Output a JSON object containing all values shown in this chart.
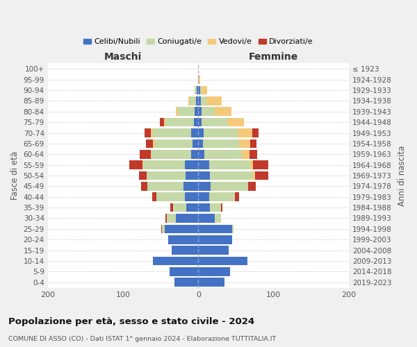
{
  "age_groups": [
    "0-4",
    "5-9",
    "10-14",
    "15-19",
    "20-24",
    "25-29",
    "30-34",
    "35-39",
    "40-44",
    "45-49",
    "50-54",
    "55-59",
    "60-64",
    "65-69",
    "70-74",
    "75-79",
    "80-84",
    "85-89",
    "90-94",
    "95-99",
    "100+"
  ],
  "birth_years": [
    "2019-2023",
    "2014-2018",
    "2009-2013",
    "2004-2008",
    "1999-2003",
    "1994-1998",
    "1989-1993",
    "1984-1988",
    "1979-1983",
    "1974-1978",
    "1969-1973",
    "1964-1968",
    "1959-1963",
    "1954-1958",
    "1949-1953",
    "1944-1948",
    "1939-1943",
    "1934-1938",
    "1929-1933",
    "1924-1928",
    "≤ 1923"
  ],
  "maschi": {
    "celibi": [
      32,
      38,
      60,
      35,
      40,
      45,
      30,
      16,
      18,
      20,
      17,
      18,
      10,
      8,
      10,
      6,
      5,
      3,
      2,
      0,
      0
    ],
    "coniugati": [
      0,
      0,
      0,
      0,
      0,
      3,
      12,
      18,
      38,
      48,
      52,
      55,
      52,
      50,
      50,
      38,
      22,
      8,
      3,
      0,
      0
    ],
    "vedovi": [
      0,
      0,
      0,
      0,
      0,
      0,
      0,
      0,
      0,
      0,
      0,
      1,
      1,
      2,
      3,
      2,
      3,
      2,
      0,
      0,
      0
    ],
    "divorziati": [
      0,
      0,
      0,
      0,
      0,
      1,
      2,
      3,
      5,
      8,
      10,
      18,
      15,
      10,
      8,
      5,
      0,
      0,
      0,
      0,
      0
    ]
  },
  "femmine": {
    "nubili": [
      35,
      42,
      65,
      40,
      45,
      45,
      22,
      15,
      14,
      16,
      15,
      14,
      8,
      6,
      7,
      4,
      4,
      3,
      2,
      0,
      0
    ],
    "coniugate": [
      0,
      0,
      0,
      0,
      0,
      2,
      8,
      15,
      35,
      50,
      58,
      55,
      50,
      48,
      45,
      35,
      18,
      8,
      2,
      0,
      0
    ],
    "vedove": [
      0,
      0,
      0,
      0,
      0,
      0,
      0,
      0,
      0,
      0,
      2,
      4,
      10,
      15,
      20,
      22,
      22,
      20,
      8,
      2,
      0
    ],
    "divorziate": [
      0,
      0,
      0,
      0,
      0,
      0,
      0,
      2,
      5,
      10,
      18,
      20,
      10,
      8,
      8,
      0,
      0,
      0,
      0,
      0,
      0
    ]
  },
  "colors": {
    "celibi": "#4472c4",
    "coniugati": "#c5d9a8",
    "vedovi": "#f5c97a",
    "divorziati": "#c0392b"
  },
  "xlim": 200,
  "title": "Popolazione per età, sesso e stato civile - 2024",
  "subtitle": "COMUNE DI ASSO (CO) - Dati ISTAT 1° gennaio 2024 - Elaborazione TUTTITALIA.IT",
  "ylabel_left": "Fasce di età",
  "ylabel_right": "Anni di nascita",
  "xlabel_left": "Maschi",
  "xlabel_right": "Femmine",
  "bg_color": "#f0f0f0",
  "plot_bg": "#ffffff"
}
